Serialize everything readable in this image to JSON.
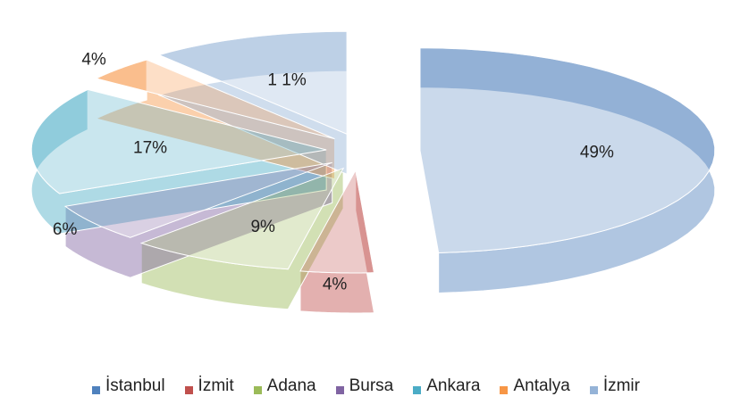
{
  "chart_data": {
    "type": "pie",
    "categories": [
      "İstanbul",
      "İzmit",
      "Adana",
      "Bursa",
      "Ankara",
      "Antalya",
      "İzmir"
    ],
    "values": [
      49,
      4,
      9,
      6,
      17,
      4,
      11
    ],
    "value_labels": [
      "49%",
      "4%",
      "9%",
      "6%",
      "17%",
      "4%",
      "1 1%"
    ],
    "colors": [
      "#4f81bd",
      "#c0504d",
      "#9bbb59",
      "#8064a2",
      "#4bacc6",
      "#f79646",
      "#95b3d7"
    ],
    "legend": "bottom"
  }
}
